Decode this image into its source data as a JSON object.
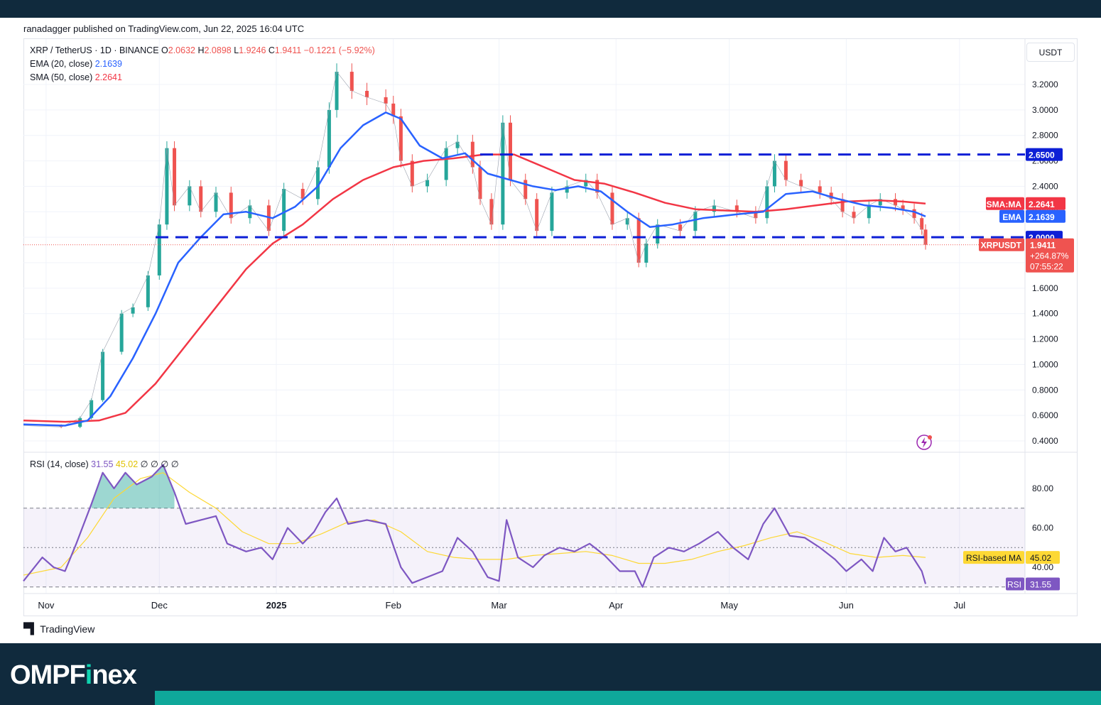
{
  "header": {
    "published": "ranadagger published on TradingView.com, Jun 22, 2025 16:04 UTC"
  },
  "legend": {
    "symbol": "XRP / TetherUS · 1D · BINANCE",
    "open_label": "O",
    "open": "2.0632",
    "high_label": "H",
    "high": "2.0898",
    "low_label": "L",
    "low": "1.9246",
    "close_label": "C",
    "close": "1.9411",
    "change": "−0.1221 (−5.92%)",
    "ema_label": "EMA (20, close)",
    "ema_value": "2.1639",
    "sma_label": "SMA (50, close)",
    "sma_value": "2.2641"
  },
  "rsi_legend": {
    "label": "RSI (14, close)",
    "rsi_value": "31.55",
    "ma_value": "45.02",
    "extras": [
      "∅",
      "∅",
      "∅",
      "∅"
    ]
  },
  "currency_button": "USDT",
  "price_axis": {
    "ticks": [
      "3.2000",
      "3.0000",
      "2.8000",
      "2.6000",
      "2.4000",
      "2.2000",
      "2.0000",
      "1.8000",
      "1.6000",
      "1.4000",
      "1.2000",
      "1.0000",
      "0.8000",
      "0.6000",
      "0.4000"
    ],
    "tags": {
      "resistance": "2.6500",
      "sma_tag": "SMA:MA",
      "sma": "2.2641",
      "ema_tag": "EMA",
      "ema": "2.1639",
      "support": "2.0000",
      "symbol_tag": "XRPUSDT",
      "last": "1.9411",
      "pct": "+264.87%",
      "countdown": "07:55:22"
    }
  },
  "rsi_axis": {
    "ticks": [
      "80.00",
      "60.00",
      "40.00"
    ],
    "ma_tag": "RSI-based MA",
    "ma": "45.02",
    "rsi_tag": "RSI",
    "rsi": "31.55"
  },
  "time_axis": {
    "labels": [
      "Nov",
      "Dec",
      "2025",
      "Feb",
      "Mar",
      "Apr",
      "May",
      "Jun",
      "Jul"
    ]
  },
  "footer": {
    "tradingview": "TradingView",
    "brand_pre": "OMPF",
    "brand_dot": "i",
    "brand_post": "nex"
  },
  "colors": {
    "up": "#26a69a",
    "down": "#ef5350",
    "ema": "#2962ff",
    "sma": "#f23645",
    "level": "#0d1fd6",
    "rsi": "#7e57c2",
    "rsi_ma": "#fdd835"
  },
  "chart_data": {
    "type": "line",
    "title": "XRP / TetherUS · 1D · BINANCE",
    "x_start": "2024-10-26",
    "x_end": "2025-06-22",
    "ylim": [
      0.36,
      3.4
    ],
    "levels": [
      2.65,
      2.0
    ],
    "series": [
      {
        "name": "XRPUSDT",
        "points": [
          [
            "2024-10-26",
            0.52
          ],
          [
            "2024-11-05",
            0.51
          ],
          [
            "2024-11-10",
            0.58
          ],
          [
            "2024-11-13",
            0.72
          ],
          [
            "2024-11-16",
            1.1
          ],
          [
            "2024-11-21",
            1.4
          ],
          [
            "2024-11-24",
            1.45
          ],
          [
            "2024-11-28",
            1.7
          ],
          [
            "2024-12-01",
            2.1
          ],
          [
            "2024-12-03",
            2.7
          ],
          [
            "2024-12-05",
            2.25
          ],
          [
            "2024-12-09",
            2.4
          ],
          [
            "2024-12-12",
            2.2
          ],
          [
            "2024-12-16",
            2.35
          ],
          [
            "2024-12-20",
            2.15
          ],
          [
            "2024-12-25",
            2.25
          ],
          [
            "2024-12-30",
            2.05
          ],
          [
            "2025-01-03",
            2.38
          ],
          [
            "2025-01-08",
            2.3
          ],
          [
            "2025-01-12",
            2.55
          ],
          [
            "2025-01-15",
            3.0
          ],
          [
            "2025-01-17",
            3.3
          ],
          [
            "2025-01-21",
            3.15
          ],
          [
            "2025-01-25",
            3.1
          ],
          [
            "2025-01-30",
            3.05
          ],
          [
            "2025-02-01",
            2.95
          ],
          [
            "2025-02-03",
            2.6
          ],
          [
            "2025-02-06",
            2.4
          ],
          [
            "2025-02-10",
            2.45
          ],
          [
            "2025-02-15",
            2.7
          ],
          [
            "2025-02-18",
            2.75
          ],
          [
            "2025-02-22",
            2.55
          ],
          [
            "2025-02-24",
            2.3
          ],
          [
            "2025-02-27",
            2.1
          ],
          [
            "2025-03-02",
            2.9
          ],
          [
            "2025-03-04",
            2.45
          ],
          [
            "2025-03-08",
            2.3
          ],
          [
            "2025-03-11",
            2.05
          ],
          [
            "2025-03-15",
            2.35
          ],
          [
            "2025-03-19",
            2.4
          ],
          [
            "2025-03-24",
            2.45
          ],
          [
            "2025-03-27",
            2.35
          ],
          [
            "2025-03-31",
            2.1
          ],
          [
            "2025-04-04",
            2.15
          ],
          [
            "2025-04-07",
            1.8
          ],
          [
            "2025-04-09",
            1.95
          ],
          [
            "2025-04-12",
            2.1
          ],
          [
            "2025-04-18",
            2.05
          ],
          [
            "2025-04-22",
            2.2
          ],
          [
            "2025-04-27",
            2.25
          ],
          [
            "2025-05-03",
            2.2
          ],
          [
            "2025-05-08",
            2.15
          ],
          [
            "2025-05-11",
            2.4
          ],
          [
            "2025-05-13",
            2.6
          ],
          [
            "2025-05-16",
            2.45
          ],
          [
            "2025-05-20",
            2.4
          ],
          [
            "2025-05-25",
            2.35
          ],
          [
            "2025-05-28",
            2.3
          ],
          [
            "2025-05-31",
            2.2
          ],
          [
            "2025-06-03",
            2.15
          ],
          [
            "2025-06-07",
            2.25
          ],
          [
            "2025-06-10",
            2.3
          ],
          [
            "2025-06-14",
            2.25
          ],
          [
            "2025-06-16",
            2.22
          ],
          [
            "2025-06-19",
            2.15
          ],
          [
            "2025-06-21",
            2.06
          ],
          [
            "2025-06-22",
            1.9411
          ]
        ]
      },
      {
        "name": "EMA (20, close)",
        "points": [
          [
            "2024-10-26",
            0.53
          ],
          [
            "2024-11-06",
            0.52
          ],
          [
            "2024-11-12",
            0.56
          ],
          [
            "2024-11-18",
            0.75
          ],
          [
            "2024-11-24",
            1.05
          ],
          [
            "2024-11-30",
            1.4
          ],
          [
            "2024-12-06",
            1.8
          ],
          [
            "2024-12-12",
            2.0
          ],
          [
            "2024-12-18",
            2.18
          ],
          [
            "2024-12-24",
            2.2
          ],
          [
            "2024-12-31",
            2.15
          ],
          [
            "2025-01-06",
            2.24
          ],
          [
            "2025-01-12",
            2.4
          ],
          [
            "2025-01-18",
            2.7
          ],
          [
            "2025-01-24",
            2.88
          ],
          [
            "2025-01-30",
            2.98
          ],
          [
            "2025-02-03",
            2.93
          ],
          [
            "2025-02-08",
            2.72
          ],
          [
            "2025-02-14",
            2.62
          ],
          [
            "2025-02-20",
            2.66
          ],
          [
            "2025-02-26",
            2.5
          ],
          [
            "2025-03-04",
            2.45
          ],
          [
            "2025-03-10",
            2.4
          ],
          [
            "2025-03-16",
            2.37
          ],
          [
            "2025-03-22",
            2.4
          ],
          [
            "2025-03-28",
            2.36
          ],
          [
            "2025-04-04",
            2.2
          ],
          [
            "2025-04-10",
            2.08
          ],
          [
            "2025-04-16",
            2.1
          ],
          [
            "2025-04-24",
            2.15
          ],
          [
            "2025-05-03",
            2.18
          ],
          [
            "2025-05-10",
            2.2
          ],
          [
            "2025-05-16",
            2.34
          ],
          [
            "2025-05-23",
            2.36
          ],
          [
            "2025-05-30",
            2.3
          ],
          [
            "2025-06-06",
            2.25
          ],
          [
            "2025-06-13",
            2.23
          ],
          [
            "2025-06-19",
            2.2
          ],
          [
            "2025-06-22",
            2.1639
          ]
        ]
      },
      {
        "name": "SMA (50, close)",
        "points": [
          [
            "2024-10-26",
            0.56
          ],
          [
            "2024-11-06",
            0.55
          ],
          [
            "2024-11-15",
            0.56
          ],
          [
            "2024-11-22",
            0.62
          ],
          [
            "2024-11-30",
            0.85
          ],
          [
            "2024-12-08",
            1.15
          ],
          [
            "2024-12-16",
            1.45
          ],
          [
            "2024-12-24",
            1.75
          ],
          [
            "2024-12-31",
            1.95
          ],
          [
            "2025-01-08",
            2.1
          ],
          [
            "2025-01-16",
            2.3
          ],
          [
            "2025-01-24",
            2.45
          ],
          [
            "2025-02-01",
            2.55
          ],
          [
            "2025-02-09",
            2.6
          ],
          [
            "2025-02-17",
            2.62
          ],
          [
            "2025-02-25",
            2.65
          ],
          [
            "2025-03-05",
            2.65
          ],
          [
            "2025-03-13",
            2.55
          ],
          [
            "2025-03-21",
            2.45
          ],
          [
            "2025-03-29",
            2.42
          ],
          [
            "2025-04-06",
            2.35
          ],
          [
            "2025-04-14",
            2.27
          ],
          [
            "2025-04-22",
            2.22
          ],
          [
            "2025-04-30",
            2.21
          ],
          [
            "2025-05-08",
            2.2
          ],
          [
            "2025-05-16",
            2.22
          ],
          [
            "2025-05-24",
            2.25
          ],
          [
            "2025-06-01",
            2.28
          ],
          [
            "2025-06-09",
            2.29
          ],
          [
            "2025-06-16",
            2.28
          ],
          [
            "2025-06-22",
            2.2641
          ]
        ]
      }
    ],
    "rsi_ylim": [
      27,
      95
    ],
    "rsi_levels": [
      70,
      50,
      30
    ],
    "rsi_series": [
      {
        "name": "RSI (14, close)",
        "points": [
          [
            "2024-10-26",
            33
          ],
          [
            "2024-10-31",
            45
          ],
          [
            "2024-11-03",
            40
          ],
          [
            "2024-11-06",
            38
          ],
          [
            "2024-11-09",
            52
          ],
          [
            "2024-11-13",
            72
          ],
          [
            "2024-11-16",
            88
          ],
          [
            "2024-11-19",
            80
          ],
          [
            "2024-11-22",
            88
          ],
          [
            "2024-11-25",
            82
          ],
          [
            "2024-11-29",
            86
          ],
          [
            "2024-12-02",
            92
          ],
          [
            "2024-12-05",
            78
          ],
          [
            "2024-12-08",
            62
          ],
          [
            "2024-12-12",
            64
          ],
          [
            "2024-12-16",
            66
          ],
          [
            "2024-12-19",
            52
          ],
          [
            "2024-12-24",
            48
          ],
          [
            "2024-12-28",
            50
          ],
          [
            "2024-12-31",
            44
          ],
          [
            "2025-01-04",
            60
          ],
          [
            "2025-01-08",
            52
          ],
          [
            "2025-01-11",
            58
          ],
          [
            "2025-01-14",
            68
          ],
          [
            "2025-01-17",
            75
          ],
          [
            "2025-01-20",
            62
          ],
          [
            "2025-01-25",
            64
          ],
          [
            "2025-01-30",
            62
          ],
          [
            "2025-02-03",
            40
          ],
          [
            "2025-02-06",
            32
          ],
          [
            "2025-02-10",
            35
          ],
          [
            "2025-02-14",
            38
          ],
          [
            "2025-02-18",
            55
          ],
          [
            "2025-02-22",
            48
          ],
          [
            "2025-02-26",
            35
          ],
          [
            "2025-03-01",
            33
          ],
          [
            "2025-03-03",
            64
          ],
          [
            "2025-03-06",
            45
          ],
          [
            "2025-03-10",
            40
          ],
          [
            "2025-03-13",
            46
          ],
          [
            "2025-03-17",
            50
          ],
          [
            "2025-03-21",
            48
          ],
          [
            "2025-03-25",
            52
          ],
          [
            "2025-03-29",
            46
          ],
          [
            "2025-04-02",
            38
          ],
          [
            "2025-04-06",
            38
          ],
          [
            "2025-04-08",
            30
          ],
          [
            "2025-04-11",
            45
          ],
          [
            "2025-04-15",
            50
          ],
          [
            "2025-04-19",
            48
          ],
          [
            "2025-04-23",
            52
          ],
          [
            "2025-04-28",
            58
          ],
          [
            "2025-05-02",
            50
          ],
          [
            "2025-05-06",
            44
          ],
          [
            "2025-05-10",
            62
          ],
          [
            "2025-05-13",
            70
          ],
          [
            "2025-05-17",
            56
          ],
          [
            "2025-05-21",
            55
          ],
          [
            "2025-05-25",
            50
          ],
          [
            "2025-05-29",
            44
          ],
          [
            "2025-06-01",
            38
          ],
          [
            "2025-06-05",
            44
          ],
          [
            "2025-06-08",
            38
          ],
          [
            "2025-06-11",
            55
          ],
          [
            "2025-06-14",
            48
          ],
          [
            "2025-06-17",
            50
          ],
          [
            "2025-06-19",
            44
          ],
          [
            "2025-06-21",
            38
          ],
          [
            "2025-06-22",
            31.55
          ]
        ]
      },
      {
        "name": "RSI-based MA",
        "points": [
          [
            "2024-10-26",
            36
          ],
          [
            "2024-11-05",
            40
          ],
          [
            "2024-11-12",
            55
          ],
          [
            "2024-11-19",
            75
          ],
          [
            "2024-11-26",
            85
          ],
          [
            "2024-12-02",
            88
          ],
          [
            "2024-12-09",
            78
          ],
          [
            "2024-12-16",
            70
          ],
          [
            "2024-12-23",
            58
          ],
          [
            "2024-12-30",
            52
          ],
          [
            "2025-01-06",
            52
          ],
          [
            "2025-01-13",
            57
          ],
          [
            "2025-01-20",
            63
          ],
          [
            "2025-01-27",
            64
          ],
          [
            "2025-02-03",
            58
          ],
          [
            "2025-02-10",
            48
          ],
          [
            "2025-02-17",
            45
          ],
          [
            "2025-02-24",
            44
          ],
          [
            "2025-03-03",
            44
          ],
          [
            "2025-03-10",
            46
          ],
          [
            "2025-03-17",
            47
          ],
          [
            "2025-03-24",
            48
          ],
          [
            "2025-03-31",
            46
          ],
          [
            "2025-04-07",
            42
          ],
          [
            "2025-04-14",
            42
          ],
          [
            "2025-04-21",
            44
          ],
          [
            "2025-04-28",
            48
          ],
          [
            "2025-05-05",
            51
          ],
          [
            "2025-05-12",
            55
          ],
          [
            "2025-05-19",
            58
          ],
          [
            "2025-05-26",
            53
          ],
          [
            "2025-06-02",
            47
          ],
          [
            "2025-06-09",
            45
          ],
          [
            "2025-06-16",
            46
          ],
          [
            "2025-06-22",
            45.02
          ]
        ]
      }
    ]
  }
}
